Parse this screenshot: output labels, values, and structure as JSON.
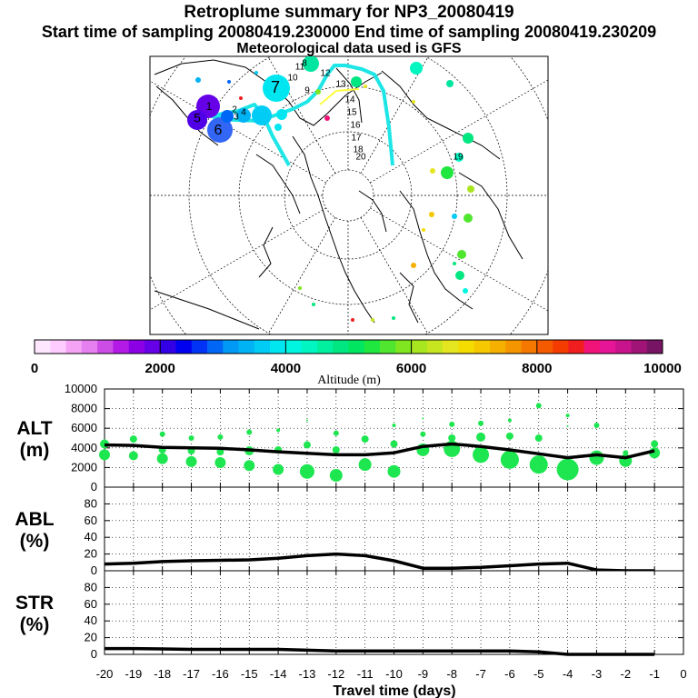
{
  "header": {
    "title": "Retroplume summary for NP3_20080419",
    "sampling": "Start time of sampling 20080419.230000     End time of sampling 20080419.230209",
    "met": "Meteorological data used is GFS"
  },
  "map": {
    "description_label": "Polar stereographic retroplume map",
    "track_color": "#1ee6e6",
    "day_labels": [
      "1",
      "2",
      "3",
      "4",
      "5",
      "6",
      "7",
      "8",
      "9",
      "10",
      "11",
      "12",
      "13",
      "14",
      "15",
      "16",
      "17",
      "18",
      "19",
      "20"
    ]
  },
  "colorbar": {
    "ticks": [
      "0",
      "2000",
      "4000",
      "6000",
      "8000",
      "10000"
    ],
    "label": "Altitude (m)",
    "colors": [
      "#ffe6ff",
      "#ffccff",
      "#f5a3f5",
      "#e680f0",
      "#cc4de6",
      "#b31ae6",
      "#8c00e6",
      "#6600e6",
      "#3300e6",
      "#0000f0",
      "#0033f5",
      "#0066f5",
      "#0099f5",
      "#00b3f5",
      "#00ccf5",
      "#00e6f0",
      "#00f5e0",
      "#00f5c0",
      "#00f0a0",
      "#00e680",
      "#00e660",
      "#20e640",
      "#50e630",
      "#80e620",
      "#a8e620",
      "#c8e620",
      "#e6e620",
      "#f5dc00",
      "#f5c800",
      "#f5b000",
      "#f59600",
      "#f57800",
      "#f55a00",
      "#f53c00",
      "#f01e1e",
      "#f0147a",
      "#e61496",
      "#c8148c",
      "#a01478",
      "#781464"
    ]
  },
  "chart_data": [
    {
      "type": "line",
      "panel": "ALT",
      "ylabel": "ALT\n(m)",
      "ylabel_lines": [
        "ALT",
        "(m)"
      ],
      "ylim": [
        0,
        10000
      ],
      "yticks": [
        "0",
        "2000",
        "4000",
        "6000",
        "8000",
        "10000"
      ],
      "x": [
        -20,
        -19,
        -18,
        -17,
        -16,
        -15,
        -14,
        -13,
        -12,
        -11,
        -10,
        -9,
        -8,
        -7,
        -6,
        -5,
        -4,
        -3,
        -2,
        -1
      ],
      "series": [
        {
          "name": "Mean altitude",
          "values": [
            4300,
            4250,
            4050,
            4000,
            3950,
            3800,
            3600,
            3450,
            3300,
            3300,
            3500,
            4150,
            4400,
            4150,
            3800,
            3400,
            3000,
            3300,
            3000,
            3700
          ]
        }
      ],
      "scatter_color": "#1ee650",
      "scatter_points": [
        {
          "x": -20,
          "y": 4400,
          "s": 5
        },
        {
          "x": -20,
          "y": 3300,
          "s": 6
        },
        {
          "x": -19,
          "y": 4900,
          "s": 4
        },
        {
          "x": -19,
          "y": 3200,
          "s": 5
        },
        {
          "x": -18,
          "y": 5400,
          "s": 3
        },
        {
          "x": -18,
          "y": 3800,
          "s": 4
        },
        {
          "x": -18,
          "y": 2900,
          "s": 6
        },
        {
          "x": -17,
          "y": 5000,
          "s": 3
        },
        {
          "x": -17,
          "y": 3700,
          "s": 4
        },
        {
          "x": -17,
          "y": 2600,
          "s": 6
        },
        {
          "x": -16,
          "y": 5100,
          "s": 3
        },
        {
          "x": -16,
          "y": 3600,
          "s": 4
        },
        {
          "x": -16,
          "y": 2500,
          "s": 6
        },
        {
          "x": -15,
          "y": 5600,
          "s": 3
        },
        {
          "x": -15,
          "y": 3700,
          "s": 5
        },
        {
          "x": -15,
          "y": 2200,
          "s": 6
        },
        {
          "x": -14,
          "y": 5800,
          "s": 2
        },
        {
          "x": -14,
          "y": 3800,
          "s": 4
        },
        {
          "x": -14,
          "y": 1800,
          "s": 6
        },
        {
          "x": -13,
          "y": 6800,
          "s": 1
        },
        {
          "x": -13,
          "y": 4300,
          "s": 4
        },
        {
          "x": -13,
          "y": 1600,
          "s": 8
        },
        {
          "x": -12,
          "y": 5500,
          "s": 3
        },
        {
          "x": -12,
          "y": 3800,
          "s": 4
        },
        {
          "x": -12,
          "y": 1200,
          "s": 7
        },
        {
          "x": -11,
          "y": 4900,
          "s": 4
        },
        {
          "x": -11,
          "y": 2300,
          "s": 7
        },
        {
          "x": -10,
          "y": 6300,
          "s": 2
        },
        {
          "x": -10,
          "y": 4400,
          "s": 4
        },
        {
          "x": -10,
          "y": 1600,
          "s": 7
        },
        {
          "x": -9,
          "y": 7000,
          "s": 1
        },
        {
          "x": -9,
          "y": 5400,
          "s": 3
        },
        {
          "x": -9,
          "y": 3800,
          "s": 7
        },
        {
          "x": -8,
          "y": 6400,
          "s": 3
        },
        {
          "x": -8,
          "y": 5000,
          "s": 4
        },
        {
          "x": -8,
          "y": 3900,
          "s": 9
        },
        {
          "x": -7,
          "y": 6500,
          "s": 3
        },
        {
          "x": -7,
          "y": 5100,
          "s": 5
        },
        {
          "x": -7,
          "y": 3300,
          "s": 9
        },
        {
          "x": -6,
          "y": 6800,
          "s": 2
        },
        {
          "x": -6,
          "y": 5200,
          "s": 4
        },
        {
          "x": -6,
          "y": 2800,
          "s": 10
        },
        {
          "x": -5,
          "y": 8300,
          "s": 3
        },
        {
          "x": -5,
          "y": 5000,
          "s": 4
        },
        {
          "x": -5,
          "y": 2300,
          "s": 10
        },
        {
          "x": -4,
          "y": 7300,
          "s": 2
        },
        {
          "x": -4,
          "y": 6200,
          "s": 1
        },
        {
          "x": -4,
          "y": 1800,
          "s": 12
        },
        {
          "x": -3,
          "y": 6300,
          "s": 3
        },
        {
          "x": -3,
          "y": 3000,
          "s": 8
        },
        {
          "x": -2,
          "y": 3500,
          "s": 3
        },
        {
          "x": -2,
          "y": 2700,
          "s": 7
        },
        {
          "x": -1,
          "y": 4400,
          "s": 4
        },
        {
          "x": -1,
          "y": 3500,
          "s": 6
        }
      ]
    },
    {
      "type": "line",
      "panel": "ABL",
      "ylabel": "ABL\n(%)",
      "ylabel_lines": [
        "ABL",
        "(%)"
      ],
      "ylim": [
        0,
        100
      ],
      "yticks": [
        "0",
        "20",
        "40",
        "60",
        "80"
      ],
      "x": [
        -20,
        -19,
        -18,
        -17,
        -16,
        -15,
        -14,
        -13,
        -12,
        -11,
        -10,
        -9,
        -8,
        -7,
        -6,
        -5,
        -4,
        -3,
        -2,
        -1
      ],
      "series": [
        {
          "name": "ABL fraction",
          "values": [
            8,
            9,
            11,
            12,
            12.5,
            13,
            15,
            18,
            20,
            18,
            12,
            3,
            3,
            4,
            6,
            8,
            9,
            1,
            0,
            0
          ]
        }
      ]
    },
    {
      "type": "line",
      "panel": "STR",
      "ylabel": "STR\n(%)",
      "ylabel_lines": [
        "STR",
        "(%)"
      ],
      "ylim": [
        0,
        100
      ],
      "yticks": [
        "0",
        "20",
        "40",
        "60",
        "80"
      ],
      "x": [
        -20,
        -19,
        -18,
        -17,
        -16,
        -15,
        -14,
        -13,
        -12,
        -11,
        -10,
        -9,
        -8,
        -7,
        -6,
        -5,
        -4,
        -3,
        -2,
        -1
      ],
      "series": [
        {
          "name": "Stratospheric fraction",
          "values": [
            7,
            7,
            6.5,
            6,
            6,
            6,
            6,
            5,
            4,
            4,
            4,
            4,
            4,
            4,
            4,
            3,
            0,
            0,
            0,
            0
          ]
        }
      ],
      "xlabel": "Travel time (days)",
      "xticks": [
        "-20",
        "-19",
        "-18",
        "-17",
        "-16",
        "-15",
        "-14",
        "-13",
        "-12",
        "-11",
        "-10",
        "-9",
        "-8",
        "-7",
        "-6",
        "-5",
        "-4",
        "-3",
        "-2",
        "-1",
        "0"
      ]
    }
  ]
}
